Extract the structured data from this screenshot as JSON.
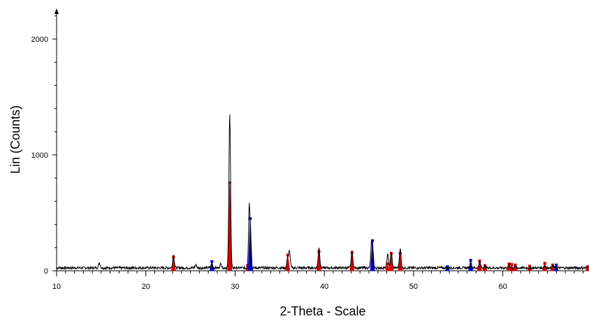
{
  "chart_data": {
    "type": "line",
    "title": "",
    "xlabel": "2-Theta - Scale",
    "ylabel": "Lin (Counts)",
    "xlim": [
      10,
      69.5
    ],
    "ylim": [
      0,
      2200
    ],
    "x_ticks": [
      10,
      20,
      30,
      40,
      50,
      60
    ],
    "y_ticks": [
      0,
      1000,
      2000
    ],
    "grid": false,
    "legend": "none",
    "series": [
      {
        "color": "#000000",
        "baseline": 25,
        "peaks": [
          {
            "x": 14.8,
            "y": 70
          },
          {
            "x": 23.1,
            "y": 135
          },
          {
            "x": 25.6,
            "y": 50
          },
          {
            "x": 27.4,
            "y": 60
          },
          {
            "x": 28.4,
            "y": 60
          },
          {
            "x": 29.4,
            "y": 1360
          },
          {
            "x": 31.6,
            "y": 590
          },
          {
            "x": 35.9,
            "y": 120
          },
          {
            "x": 36.1,
            "y": 160
          },
          {
            "x": 39.4,
            "y": 200
          },
          {
            "x": 43.1,
            "y": 165
          },
          {
            "x": 45.3,
            "y": 255
          },
          {
            "x": 47.1,
            "y": 140
          },
          {
            "x": 47.5,
            "y": 160
          },
          {
            "x": 48.5,
            "y": 190
          },
          {
            "x": 56.4,
            "y": 70
          },
          {
            "x": 57.4,
            "y": 80
          },
          {
            "x": 58.0,
            "y": 40
          },
          {
            "x": 60.7,
            "y": 45
          },
          {
            "x": 61.4,
            "y": 40
          },
          {
            "x": 64.7,
            "y": 45
          },
          {
            "x": 65.6,
            "y": 40
          }
        ]
      }
    ],
    "reference_sticks": [
      {
        "color": "#d40000",
        "lines": [
          {
            "x": 23.1,
            "y": 120
          },
          {
            "x": 29.4,
            "y": 760
          },
          {
            "x": 31.4,
            "y": 45
          },
          {
            "x": 35.9,
            "y": 135
          },
          {
            "x": 39.4,
            "y": 165
          },
          {
            "x": 43.1,
            "y": 160
          },
          {
            "x": 47.1,
            "y": 60
          },
          {
            "x": 47.5,
            "y": 150
          },
          {
            "x": 48.5,
            "y": 150
          },
          {
            "x": 57.4,
            "y": 85
          },
          {
            "x": 58.0,
            "y": 45
          },
          {
            "x": 60.7,
            "y": 60
          },
          {
            "x": 61.0,
            "y": 55
          },
          {
            "x": 61.4,
            "y": 50
          },
          {
            "x": 63.0,
            "y": 40
          },
          {
            "x": 64.7,
            "y": 65
          },
          {
            "x": 65.6,
            "y": 50
          },
          {
            "x": 69.5,
            "y": 35
          }
        ]
      },
      {
        "color": "#0000d0",
        "lines": [
          {
            "x": 27.4,
            "y": 80
          },
          {
            "x": 31.7,
            "y": 450
          },
          {
            "x": 45.4,
            "y": 260
          },
          {
            "x": 53.8,
            "y": 35
          },
          {
            "x": 56.4,
            "y": 90
          },
          {
            "x": 66.0,
            "y": 50
          }
        ]
      }
    ]
  }
}
